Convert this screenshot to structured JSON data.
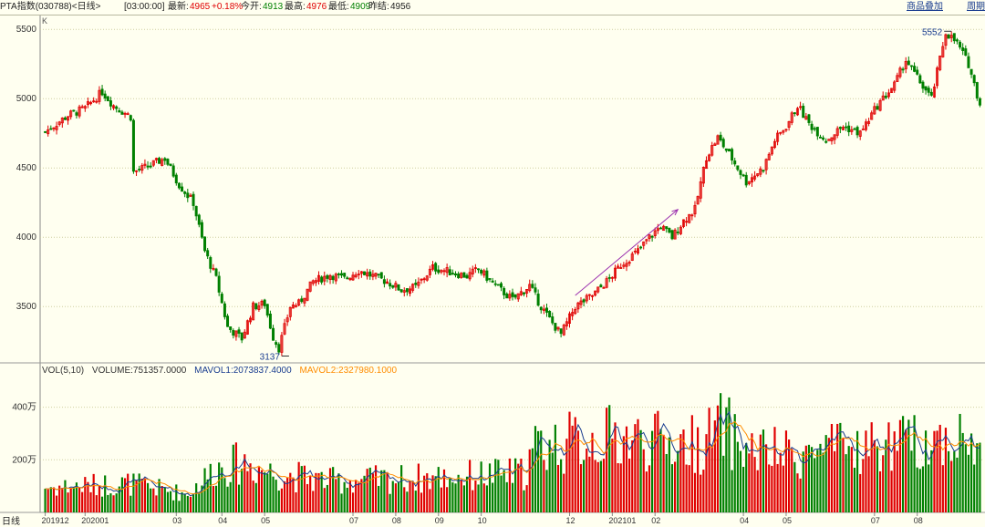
{
  "header": {
    "instrument": "PTA指数(030788)<日线>",
    "time": "[03:00:00]",
    "latest_label": "最新:",
    "latest_value": "4965",
    "change": "+0.18%",
    "open_label": "今开:",
    "open_value": "4913",
    "high_label": "最高:",
    "high_value": "4976",
    "low_label": "最低:",
    "low_value": "4909",
    "prev_label": "昨结:",
    "prev_value": "4956",
    "link_overlay": "商品叠加",
    "link_period": "周期"
  },
  "k_label": "K",
  "volume_legend": {
    "title": "VOL(5,10)",
    "volume": "VOLUME:751357.0000",
    "mavol1": "MAVOL1:2073837.4000",
    "mavol2": "MAVOL2:2327980.1000"
  },
  "xaxis_name": "日线",
  "colors": {
    "up": "#e00000",
    "down": "#008000",
    "ma1": "#1a3d8f",
    "ma2": "#ff8c00",
    "arrow": "#9b2fae",
    "grid": "#cfcfa0"
  },
  "chart_data": [
    {
      "type": "candlestick",
      "title": "PTA指数(030788)<日线>",
      "ylim": [
        3100,
        5600
      ],
      "yticks": [
        "5500",
        "5000",
        "4500",
        "4000",
        "3500"
      ],
      "xticks": [
        "201912",
        "202001",
        "03",
        "04",
        "05",
        "07",
        "08",
        "09",
        "10",
        "12",
        "202101",
        "02",
        "04",
        "05",
        "07",
        "08"
      ],
      "annotations": {
        "high": "5552",
        "low": "3137"
      },
      "trend_arrow": {
        "from_close": 3580,
        "to_close": 4200
      },
      "close_anchors": [
        [
          0,
          4760
        ],
        [
          8,
          4880
        ],
        [
          14,
          4930
        ],
        [
          20,
          5050
        ],
        [
          24,
          4950
        ],
        [
          30,
          4870
        ],
        [
          31,
          4470
        ],
        [
          36,
          4510
        ],
        [
          42,
          4570
        ],
        [
          47,
          4380
        ],
        [
          52,
          4250
        ],
        [
          56,
          3900
        ],
        [
          60,
          3700
        ],
        [
          64,
          3350
        ],
        [
          69,
          3270
        ],
        [
          73,
          3500
        ],
        [
          77,
          3520
        ],
        [
          80,
          3280
        ],
        [
          82,
          3200
        ],
        [
          86,
          3500
        ],
        [
          89,
          3520
        ],
        [
          94,
          3680
        ],
        [
          100,
          3730
        ],
        [
          105,
          3700
        ],
        [
          110,
          3760
        ],
        [
          115,
          3720
        ],
        [
          120,
          3680
        ],
        [
          125,
          3620
        ],
        [
          130,
          3640
        ],
        [
          136,
          3780
        ],
        [
          142,
          3750
        ],
        [
          148,
          3720
        ],
        [
          152,
          3770
        ],
        [
          158,
          3650
        ],
        [
          164,
          3550
        ],
        [
          170,
          3650
        ],
        [
          174,
          3500
        ],
        [
          178,
          3380
        ],
        [
          181,
          3300
        ],
        [
          186,
          3500
        ],
        [
          192,
          3580
        ],
        [
          198,
          3700
        ],
        [
          202,
          3800
        ],
        [
          208,
          3900
        ],
        [
          212,
          4000
        ],
        [
          216,
          4080
        ],
        [
          220,
          4000
        ],
        [
          224,
          4120
        ],
        [
          228,
          4200
        ],
        [
          232,
          4580
        ],
        [
          236,
          4720
        ],
        [
          240,
          4600
        ],
        [
          246,
          4400
        ],
        [
          252,
          4500
        ],
        [
          256,
          4700
        ],
        [
          260,
          4800
        ],
        [
          264,
          4950
        ],
        [
          268,
          4820
        ],
        [
          274,
          4700
        ],
        [
          280,
          4800
        ],
        [
          286,
          4750
        ],
        [
          292,
          4950
        ],
        [
          298,
          5100
        ],
        [
          302,
          5280
        ],
        [
          306,
          5150
        ],
        [
          311,
          5000
        ],
        [
          316,
          5480
        ],
        [
          320,
          5400
        ],
        [
          324,
          5250
        ],
        [
          328,
          4960
        ]
      ]
    },
    {
      "type": "bar",
      "title": "VOL(5,10)",
      "ylim": [
        0,
        520
      ],
      "yticks": [
        "400万",
        "200万"
      ],
      "series": [
        {
          "name": "MAVOL1",
          "period": 5
        },
        {
          "name": "MAVOL2",
          "period": 10
        }
      ],
      "volume_anchors": [
        [
          0,
          95
        ],
        [
          30,
          110
        ],
        [
          50,
          70
        ],
        [
          60,
          170
        ],
        [
          70,
          190
        ],
        [
          80,
          150
        ],
        [
          100,
          120
        ],
        [
          130,
          130
        ],
        [
          150,
          140
        ],
        [
          168,
          150
        ],
        [
          172,
          250
        ],
        [
          200,
          290
        ],
        [
          215,
          270
        ],
        [
          230,
          260
        ],
        [
          238,
          330
        ],
        [
          245,
          240
        ],
        [
          260,
          220
        ],
        [
          280,
          240
        ],
        [
          300,
          260
        ],
        [
          320,
          290
        ],
        [
          328,
          230
        ]
      ]
    }
  ]
}
